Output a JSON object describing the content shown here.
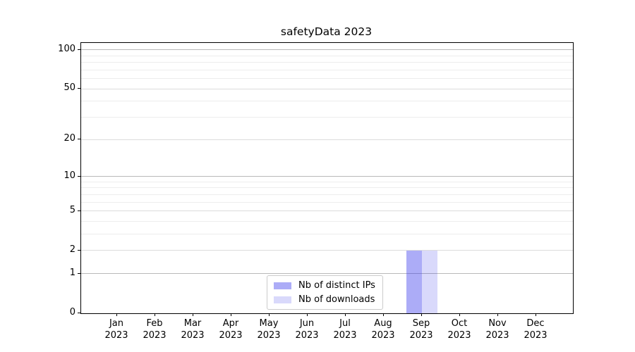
{
  "figure": {
    "title": "safetyData 2023"
  },
  "chart_data": {
    "type": "bar",
    "title": "safetyData 2023",
    "categories": [
      "Jan",
      "Feb",
      "Mar",
      "Apr",
      "May",
      "Jun",
      "Jul",
      "Aug",
      "Sep",
      "Oct",
      "Nov",
      "Dec"
    ],
    "category_year": "2023",
    "series": [
      {
        "name": "Nb of distinct IPs",
        "color": "rgba(47,47,234,0.40)",
        "values": [
          0,
          0,
          0,
          0,
          0,
          0,
          0,
          0,
          2,
          0,
          0,
          0
        ]
      },
      {
        "name": "Nb of downloads",
        "color": "rgba(47,47,234,0.18)",
        "values": [
          0,
          0,
          0,
          0,
          0,
          0,
          0,
          0,
          2,
          0,
          0,
          0
        ]
      }
    ],
    "yscale": "log1p",
    "ylim": [
      0,
      113
    ],
    "y_ticks": [
      0,
      1,
      2,
      5,
      10,
      20,
      50,
      100
    ],
    "y_minor_ticks": [
      3,
      4,
      6,
      7,
      8,
      9,
      30,
      40,
      60,
      70,
      80,
      90
    ],
    "grid": true,
    "legend_position": "lower center",
    "colors": {
      "decade_grid": "#b9b9b9",
      "major_grid": "#dcdcdc",
      "minor_grid": "#ededed",
      "axis": "#000000",
      "text": "#000000"
    }
  }
}
